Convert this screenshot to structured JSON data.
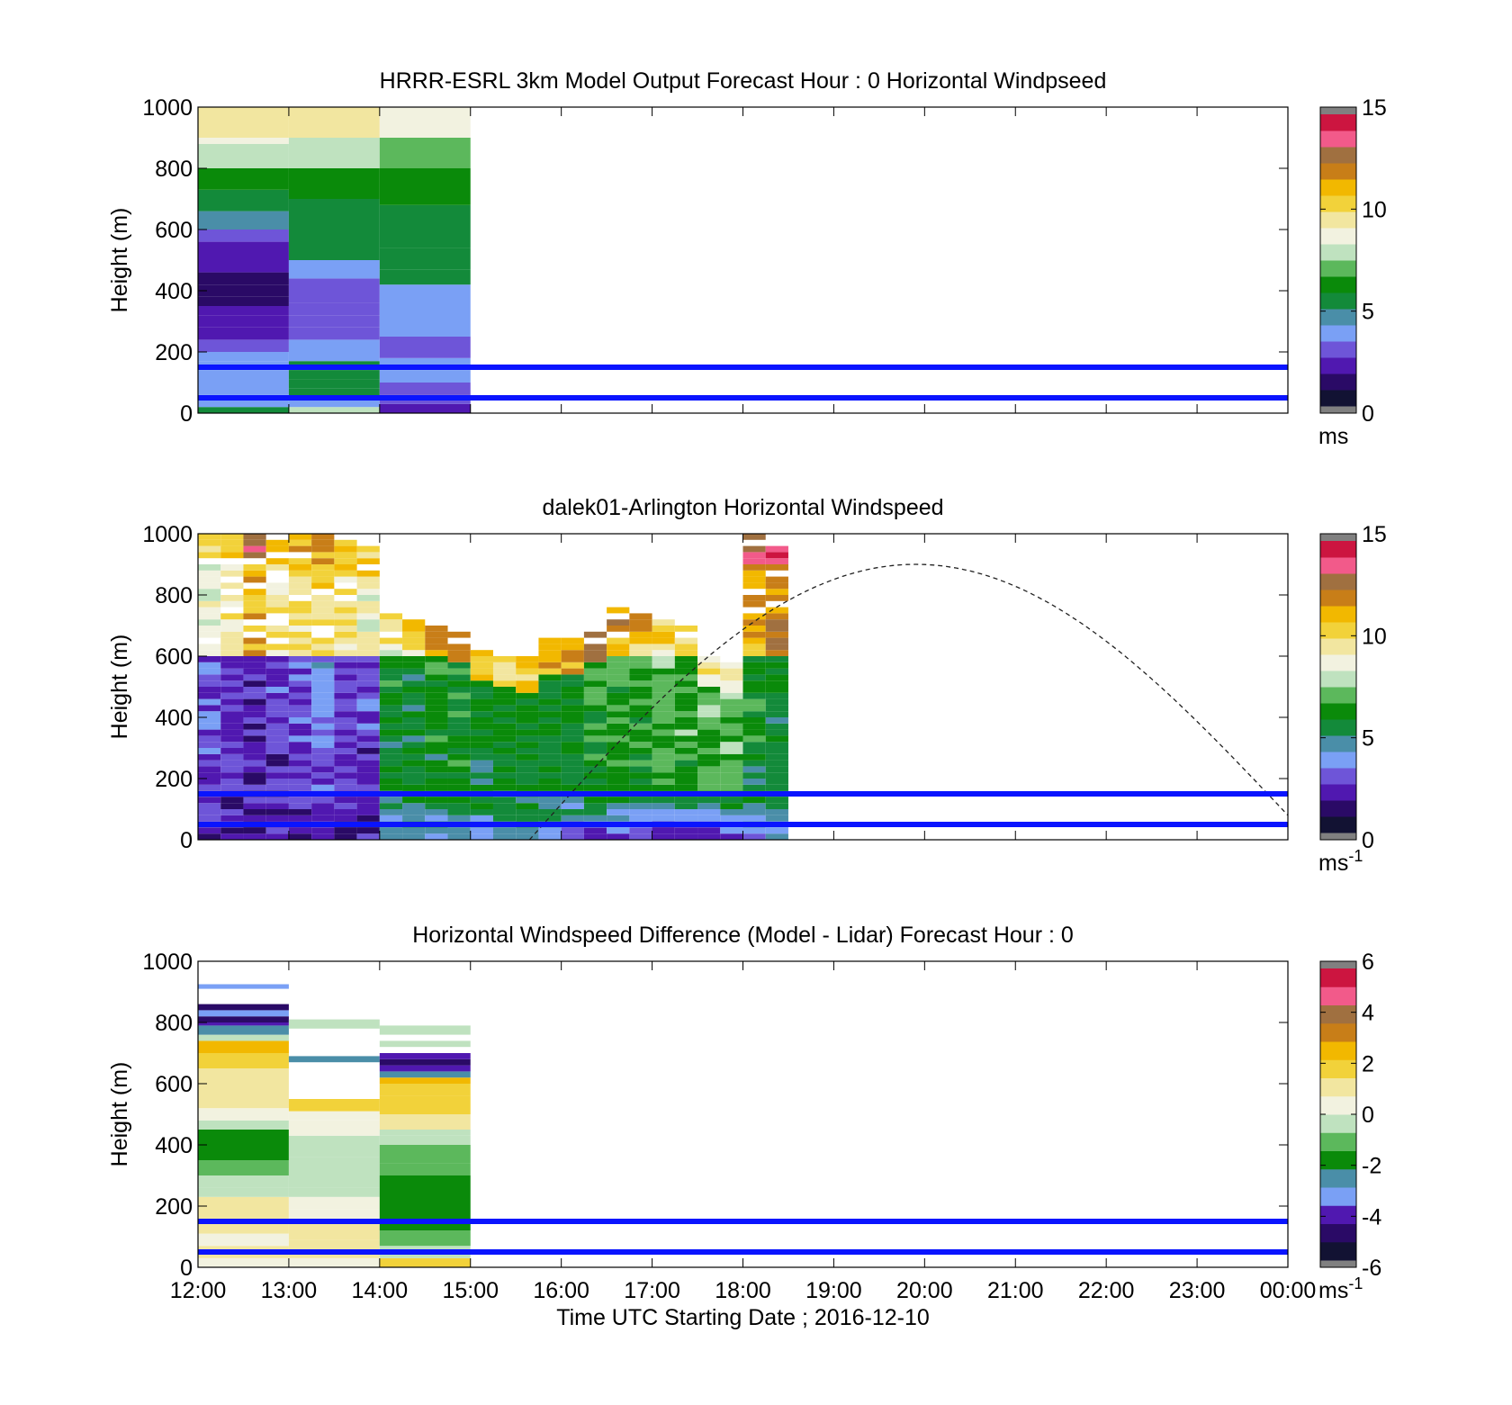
{
  "palettes": {
    "speed": [
      "#121233",
      "#2a0a66",
      "#5018b0",
      "#6e55d8",
      "#7aa0f5",
      "#4a8ea8",
      "#138a3a",
      "#0a8a0a",
      "#5cb85c",
      "#bfe2bf",
      "#f2f2e0",
      "#f2e6a0",
      "#f2d23a",
      "#f2b800",
      "#c87e18",
      "#a07040",
      "#f25a8a",
      "#cc1540"
    ],
    "diff": [
      "#121233",
      "#2a0a66",
      "#5018b0",
      "#7aa0f5",
      "#4a8ea8",
      "#0a8a0a",
      "#5cb85c",
      "#bfe2bf",
      "#f2f2e0",
      "#f2e6a0",
      "#f2d23a",
      "#f2b800",
      "#c87e18",
      "#a07040",
      "#f25a8a",
      "#cc1540"
    ]
  },
  "chart_data": [
    {
      "type": "heatmap",
      "title": "HRRR-ESRL 3km Model Output   Forecast Hour : 0 Horizontal Windpseed",
      "ylabel": "Height (m)",
      "xlabel": "",
      "ylim": [
        0,
        1000
      ],
      "yticks": [
        "0",
        "200",
        "400",
        "600",
        "800",
        "1000"
      ],
      "xlim_hours": [
        12,
        24
      ],
      "xticks": [],
      "colorbar": {
        "min": 0,
        "max": 15,
        "ticks": [
          "0",
          "5",
          "10",
          "15"
        ],
        "unit": "ms",
        "unit_sup": "",
        "palette": "speed"
      },
      "reference_lines_m": [
        50,
        150
      ],
      "columns": [
        {
          "start": 12,
          "end": 13,
          "cells": [
            [
              0,
              20,
              5.5
            ],
            [
              20,
              60,
              3.6
            ],
            [
              60,
              100,
              3.8
            ],
            [
              100,
              140,
              3.9
            ],
            [
              140,
              170,
              3.7
            ],
            [
              170,
              200,
              3.4
            ],
            [
              200,
              240,
              3.1
            ],
            [
              240,
              280,
              2.4
            ],
            [
              280,
              320,
              2.2
            ],
            [
              320,
              350,
              1.8
            ],
            [
              350,
              380,
              1.2
            ],
            [
              380,
              420,
              1.1
            ],
            [
              420,
              460,
              1.6
            ],
            [
              460,
              500,
              2.1
            ],
            [
              500,
              560,
              2.3
            ],
            [
              560,
              600,
              2.5
            ],
            [
              600,
              660,
              4.2
            ],
            [
              660,
              730,
              5.8
            ],
            [
              730,
              800,
              6.0
            ],
            [
              800,
              880,
              7.5
            ],
            [
              880,
              900,
              8.8
            ],
            [
              900,
              1000,
              9.4
            ]
          ]
        },
        {
          "start": 13,
          "end": 14,
          "cells": [
            [
              0,
              20,
              7.6
            ],
            [
              20,
              50,
              3.8
            ],
            [
              50,
              80,
              5.4
            ],
            [
              80,
              110,
              5.6
            ],
            [
              110,
              140,
              5.2
            ],
            [
              140,
              170,
              5.0
            ],
            [
              170,
              200,
              3.5
            ],
            [
              200,
              240,
              3.9
            ],
            [
              240,
              280,
              3.3
            ],
            [
              280,
              320,
              3.1
            ],
            [
              320,
              360,
              2.5
            ],
            [
              360,
              400,
              2.8
            ],
            [
              400,
              440,
              2.5
            ],
            [
              440,
              500,
              3.7
            ],
            [
              500,
              600,
              5.0
            ],
            [
              600,
              700,
              5.6
            ],
            [
              700,
              800,
              6.4
            ],
            [
              800,
              900,
              8.0
            ],
            [
              900,
              1000,
              9.8
            ]
          ]
        },
        {
          "start": 14,
          "end": 15,
          "cells": [
            [
              0,
              30,
              2.2
            ],
            [
              30,
              60,
              2.6
            ],
            [
              60,
              100,
              2.8
            ],
            [
              100,
              140,
              3.5
            ],
            [
              140,
              180,
              3.6
            ],
            [
              180,
              250,
              3.3
            ],
            [
              250,
              300,
              3.6
            ],
            [
              300,
              350,
              3.9
            ],
            [
              350,
              420,
              3.8
            ],
            [
              420,
              470,
              5.4
            ],
            [
              470,
              540,
              5.4
            ],
            [
              540,
              600,
              5.5
            ],
            [
              600,
              680,
              5.8
            ],
            [
              680,
              750,
              6.2
            ],
            [
              750,
              800,
              6.6
            ],
            [
              800,
              900,
              7.2
            ],
            [
              900,
              1000,
              9.0
            ]
          ]
        }
      ]
    },
    {
      "type": "heatmap",
      "title": "dalek01-Arlington  Horizontal Windspeed",
      "ylabel": "Height (m)",
      "xlabel": "",
      "ylim": [
        0,
        1000
      ],
      "yticks": [
        "0",
        "200",
        "400",
        "600",
        "800",
        "1000"
      ],
      "xlim_hours": [
        12,
        24
      ],
      "xticks": [],
      "colorbar": {
        "min": 0,
        "max": 15,
        "ticks": [
          "0",
          "5",
          "10",
          "15"
        ],
        "unit": "ms",
        "unit_sup": "-1",
        "palette": "speed"
      },
      "reference_lines_m": [
        50,
        150
      ],
      "profile_tops_m": [
        1000,
        1000,
        1000,
        1000,
        990,
        1000,
        980,
        960,
        740,
        720,
        700,
        680,
        620,
        600,
        590,
        650,
        650,
        680,
        760,
        740,
        720,
        700,
        600,
        580,
        1000,
        1000
      ],
      "profile_speed_0_150_150_600_600_top": [
        [
          2.2,
          2.5,
          8.5
        ],
        [
          1.5,
          2.2,
          9.5
        ],
        [
          1.5,
          2.0,
          11.0
        ],
        [
          2.4,
          2.2,
          9.5
        ],
        [
          1.8,
          2.6,
          10.0
        ],
        [
          2.2,
          3.0,
          10.0
        ],
        [
          2.0,
          2.4,
          9.5
        ],
        [
          1.8,
          2.2,
          9.0
        ],
        [
          4.0,
          5.4,
          8.5
        ],
        [
          4.5,
          5.4,
          9.5
        ],
        [
          4.2,
          5.6,
          10.0
        ],
        [
          5.0,
          5.8,
          10.5
        ],
        [
          4.6,
          5.5,
          9.0
        ],
        [
          4.0,
          5.8,
          8.5
        ],
        [
          4.2,
          5.6,
          9.0
        ],
        [
          3.6,
          5.5,
          9.5
        ],
        [
          3.2,
          5.6,
          10.0
        ],
        [
          2.8,
          6.0,
          10.5
        ],
        [
          2.6,
          6.2,
          10.5
        ],
        [
          2.2,
          6.0,
          10.0
        ],
        [
          2.0,
          6.2,
          9.0
        ],
        [
          1.8,
          6.4,
          8.5
        ],
        [
          2.0,
          6.6,
          8.0
        ],
        [
          2.2,
          7.0,
          7.5
        ],
        [
          3.5,
          5.6,
          11.5
        ],
        [
          4.0,
          5.2,
          12.5
        ]
      ],
      "boundary_layer_curve": {
        "start_hour": 15.65,
        "end_hour": 24.0,
        "peak_hour": 19.9,
        "peak_m": 900,
        "end_m": 80
      }
    },
    {
      "type": "heatmap",
      "title": "Horizontal Windspeed Difference (Model - Lidar) Forecast Hour : 0",
      "ylabel": "Height (m)",
      "xlabel": "Time UTC  Starting Date ; 2016-12-10",
      "ylim": [
        0,
        1000
      ],
      "yticks": [
        "0",
        "200",
        "400",
        "600",
        "800",
        "1000"
      ],
      "xlim_hours": [
        12,
        24
      ],
      "xticks": [
        "12:00",
        "13:00",
        "14:00",
        "15:00",
        "16:00",
        "17:00",
        "18:00",
        "19:00",
        "20:00",
        "21:00",
        "22:00",
        "23:00",
        "00:00"
      ],
      "colorbar": {
        "min": -6,
        "max": 6,
        "ticks": [
          "-6",
          "-4",
          "-2",
          "0",
          "2",
          "4",
          "6"
        ],
        "unit": "ms",
        "unit_sup": "-1",
        "palette": "diff"
      },
      "reference_lines_m": [
        50,
        150
      ],
      "columns": [
        {
          "start": 12,
          "end": 13,
          "cells": [
            [
              0,
              30,
              0.2
            ],
            [
              30,
              70,
              1.2
            ],
            [
              70,
              110,
              0.6
            ],
            [
              110,
              150,
              1.4
            ],
            [
              150,
              200,
              1.0
            ],
            [
              200,
              230,
              0.8
            ],
            [
              230,
              260,
              -0.1
            ],
            [
              260,
              300,
              -0.7
            ],
            [
              300,
              350,
              -1.0
            ],
            [
              350,
              400,
              -1.6
            ],
            [
              400,
              450,
              -1.8
            ],
            [
              450,
              480,
              -0.6
            ],
            [
              480,
              520,
              0.2
            ],
            [
              520,
              600,
              1.1
            ],
            [
              600,
              650,
              1.3
            ],
            [
              650,
              700,
              1.8
            ],
            [
              700,
              740,
              2.3
            ],
            [
              740,
              760,
              -0.4
            ],
            [
              760,
              790,
              -2.5
            ],
            [
              790,
              800,
              -4.3
            ],
            [
              800,
              820,
              -5.0
            ],
            [
              820,
              840,
              -3.7
            ],
            [
              840,
              860,
              -4.8
            ],
            [
              910,
              925,
              -3.2
            ]
          ]
        },
        {
          "start": 13,
          "end": 14,
          "cells": [
            [
              0,
              30,
              0.5
            ],
            [
              30,
              90,
              1.4
            ],
            [
              90,
              150,
              0.8
            ],
            [
              150,
              190,
              0.5
            ],
            [
              190,
              230,
              0.3
            ],
            [
              230,
              260,
              -0.2
            ],
            [
              260,
              300,
              -0.5
            ],
            [
              300,
              360,
              -0.6
            ],
            [
              360,
              400,
              -0.3
            ],
            [
              400,
              430,
              -0.1
            ],
            [
              430,
              480,
              0.4
            ],
            [
              480,
              510,
              0.6
            ],
            [
              510,
              550,
              1.7
            ],
            [
              670,
              690,
              -2.6
            ],
            [
              780,
              810,
              -0.1
            ]
          ]
        },
        {
          "start": 14,
          "end": 15,
          "cells": [
            [
              0,
              30,
              1.5
            ],
            [
              30,
              70,
              -0.7
            ],
            [
              70,
              120,
              -0.9
            ],
            [
              120,
              200,
              -1.6
            ],
            [
              200,
              300,
              -1.8
            ],
            [
              300,
              340,
              -1.0
            ],
            [
              340,
              400,
              -0.8
            ],
            [
              400,
              430,
              -0.6
            ],
            [
              430,
              450,
              -0.1
            ],
            [
              450,
              500,
              1.2
            ],
            [
              500,
              560,
              1.5
            ],
            [
              560,
              600,
              1.7
            ],
            [
              600,
              620,
              2.4
            ],
            [
              620,
              640,
              -2.7
            ],
            [
              640,
              660,
              -4.3
            ],
            [
              660,
              680,
              -5.0
            ],
            [
              680,
              700,
              -3.9
            ],
            [
              720,
              740,
              -0.2
            ],
            [
              760,
              790,
              -0.1
            ]
          ]
        }
      ]
    }
  ]
}
